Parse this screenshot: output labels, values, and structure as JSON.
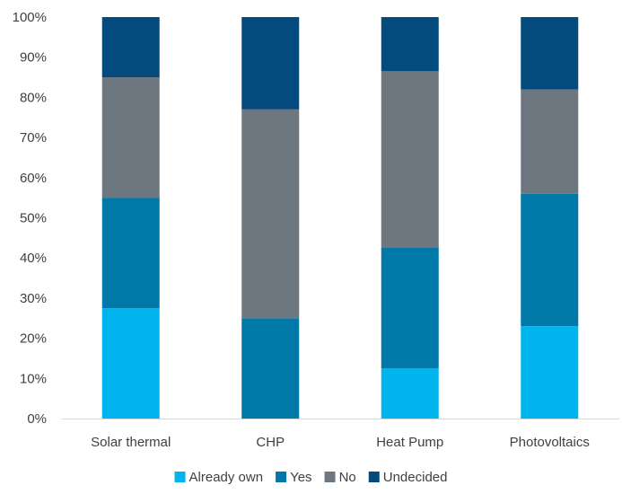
{
  "chart_data": {
    "type": "bar",
    "stacked": true,
    "categories": [
      "Solar thermal",
      "CHP",
      "Heat Pump",
      "Photovoltaics"
    ],
    "series": [
      {
        "name": "Already own",
        "color": "#00B4EE",
        "values": [
          27.5,
          0,
          12.5,
          23
        ]
      },
      {
        "name": "Yes",
        "color": "#0078A8",
        "values": [
          27.5,
          25,
          30,
          33
        ]
      },
      {
        "name": "No",
        "color": "#6E7680",
        "values": [
          30,
          52,
          44,
          26
        ]
      },
      {
        "name": "Undecided",
        "color": "#034B7C",
        "values": [
          15,
          23,
          13.5,
          18
        ]
      }
    ],
    "ylim": [
      0,
      100
    ],
    "yticks": [
      "0%",
      "10%",
      "20%",
      "30%",
      "40%",
      "50%",
      "60%",
      "70%",
      "80%",
      "90%",
      "100%"
    ],
    "title": "",
    "xlabel": "",
    "ylabel": "",
    "legend_position": "bottom",
    "grid": false
  }
}
